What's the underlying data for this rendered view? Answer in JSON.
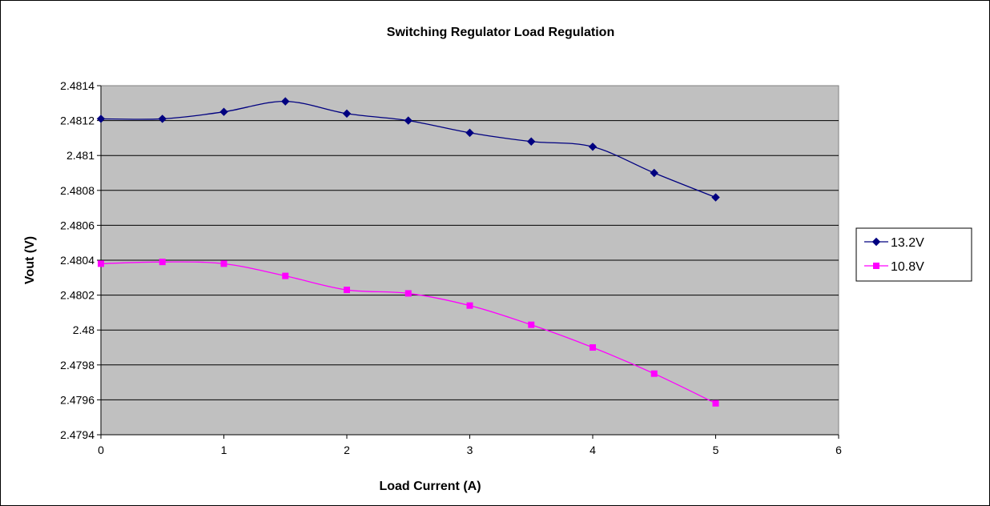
{
  "chart_data": {
    "type": "line",
    "title": "Switching Regulator Load Regulation",
    "xlabel": "Load Current (A)",
    "ylabel": "Vout (V)",
    "xlim": [
      0,
      6
    ],
    "ylim": [
      2.4794,
      2.4814
    ],
    "xticks": [
      "0",
      "1",
      "2",
      "3",
      "4",
      "5",
      "6"
    ],
    "yticks": [
      "2.4794",
      "2.4796",
      "2.4798",
      "2.48",
      "2.4802",
      "2.4804",
      "2.4806",
      "2.4808",
      "2.481",
      "2.4812",
      "2.4814"
    ],
    "grid": "horizontal",
    "legend_position": "right",
    "plot_background": "#c0c0c0",
    "series": [
      {
        "name": "13.2V",
        "color": "#000080",
        "marker": "diamond",
        "x": [
          0,
          0.5,
          1,
          1.5,
          2,
          2.5,
          3,
          3.5,
          4,
          4.5,
          5
        ],
        "values": [
          2.48121,
          2.48121,
          2.48125,
          2.48131,
          2.48124,
          2.4812,
          2.48113,
          2.48108,
          2.48105,
          2.4809,
          2.48076
        ]
      },
      {
        "name": "10.8V",
        "color": "#ff00ff",
        "marker": "square",
        "x": [
          0,
          0.5,
          1,
          1.5,
          2,
          2.5,
          3,
          3.5,
          4,
          4.5,
          5
        ],
        "values": [
          2.48038,
          2.48039,
          2.48038,
          2.48031,
          2.48023,
          2.48021,
          2.48014,
          2.48003,
          2.4799,
          2.47975,
          2.47958
        ]
      }
    ]
  }
}
